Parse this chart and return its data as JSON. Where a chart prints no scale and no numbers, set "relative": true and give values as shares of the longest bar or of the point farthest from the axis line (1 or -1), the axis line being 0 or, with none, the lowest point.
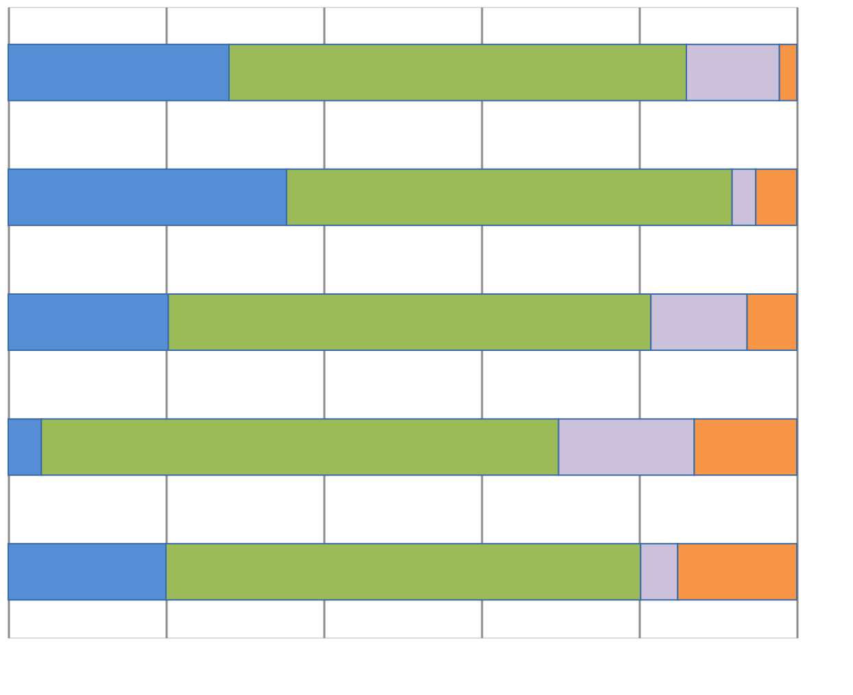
{
  "chart_data": {
    "type": "bar",
    "orientation": "horizontal",
    "stacked": true,
    "relative": true,
    "categories": [
      null,
      null,
      null,
      null,
      null
    ],
    "series": [
      {
        "color": "#558ed5",
        "values": [
          0.28,
          0.353,
          0.203,
          0.042,
          0.2
        ]
      },
      {
        "color": "#9bbb59",
        "values": [
          0.58,
          0.565,
          0.612,
          0.656,
          0.602
        ]
      },
      {
        "color": "#ccc1da",
        "values": [
          0.118,
          0.03,
          0.122,
          0.172,
          0.047
        ]
      },
      {
        "color": "#f79646",
        "values": [
          0.022,
          0.052,
          0.063,
          0.13,
          0.151
        ]
      }
    ],
    "grid": "x",
    "tick_labels": false,
    "legend": false
  }
}
